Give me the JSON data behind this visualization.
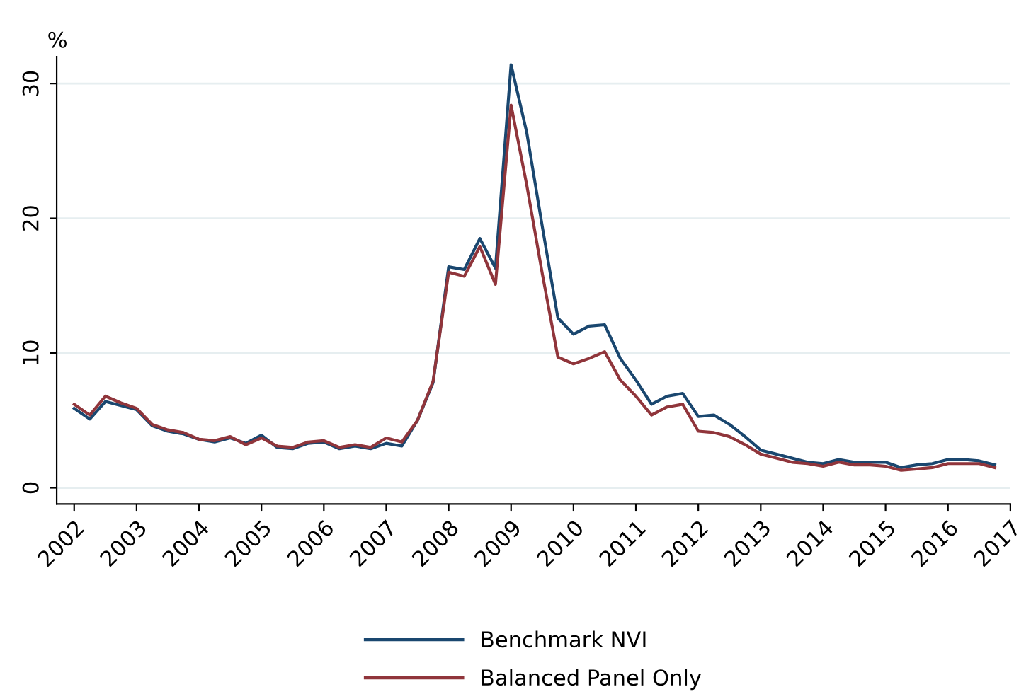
{
  "chart_data": {
    "type": "line",
    "ylabel": "%",
    "x": [
      2002.0,
      2002.25,
      2002.5,
      2002.75,
      2003.0,
      2003.25,
      2003.5,
      2003.75,
      2004.0,
      2004.25,
      2004.5,
      2004.75,
      2005.0,
      2005.25,
      2005.5,
      2005.75,
      2006.0,
      2006.25,
      2006.5,
      2006.75,
      2007.0,
      2007.25,
      2007.5,
      2007.75,
      2008.0,
      2008.25,
      2008.5,
      2008.75,
      2009.0,
      2009.25,
      2009.5,
      2009.75,
      2010.0,
      2010.25,
      2010.5,
      2010.75,
      2011.0,
      2011.25,
      2011.5,
      2011.75,
      2012.0,
      2012.25,
      2012.5,
      2012.75,
      2013.0,
      2013.25,
      2013.5,
      2013.75,
      2014.0,
      2014.25,
      2014.5,
      2014.75,
      2015.0,
      2015.25,
      2015.5,
      2015.75,
      2016.0,
      2016.25,
      2016.5,
      2016.75
    ],
    "series": [
      {
        "name": "Benchmark NVI",
        "color": "#1a476f",
        "values": [
          5.9,
          5.1,
          6.4,
          6.1,
          5.8,
          4.6,
          4.2,
          4.0,
          3.6,
          3.4,
          3.7,
          3.3,
          3.9,
          3.0,
          2.9,
          3.3,
          3.4,
          2.9,
          3.1,
          2.9,
          3.3,
          3.1,
          5.0,
          7.8,
          16.4,
          16.2,
          18.5,
          16.3,
          31.4,
          26.4,
          19.4,
          12.6,
          11.4,
          12.0,
          12.1,
          9.6,
          8.0,
          6.2,
          6.8,
          7.0,
          5.3,
          5.4,
          4.7,
          3.8,
          2.8,
          2.5,
          2.2,
          1.9,
          1.8,
          2.1,
          1.9,
          1.9,
          1.9,
          1.5,
          1.7,
          1.8,
          2.1,
          2.1,
          2.0,
          1.7
        ]
      },
      {
        "name": "Balanced Panel Only",
        "color": "#90353b",
        "values": [
          6.2,
          5.4,
          6.8,
          6.3,
          5.9,
          4.7,
          4.3,
          4.1,
          3.6,
          3.5,
          3.8,
          3.2,
          3.7,
          3.1,
          3.0,
          3.4,
          3.5,
          3.0,
          3.2,
          3.0,
          3.7,
          3.4,
          5.0,
          7.9,
          16.0,
          15.7,
          17.9,
          15.1,
          28.4,
          22.5,
          15.9,
          9.7,
          9.2,
          9.6,
          10.1,
          8.0,
          6.8,
          5.4,
          6.0,
          6.2,
          4.2,
          4.1,
          3.8,
          3.2,
          2.5,
          2.2,
          1.9,
          1.8,
          1.6,
          1.9,
          1.7,
          1.7,
          1.6,
          1.3,
          1.4,
          1.5,
          1.8,
          1.8,
          1.8,
          1.5
        ]
      }
    ],
    "xlim": [
      2001.72,
      2017
    ],
    "xticks": [
      2002,
      2003,
      2004,
      2005,
      2006,
      2007,
      2008,
      2009,
      2010,
      2011,
      2012,
      2013,
      2014,
      2015,
      2016,
      2017
    ],
    "ylim": [
      -1.2,
      32
    ],
    "yticks": [
      0,
      10,
      20,
      30
    ],
    "grid": "y",
    "legend": "bottom",
    "marker": "none",
    "line_style": "solid"
  }
}
